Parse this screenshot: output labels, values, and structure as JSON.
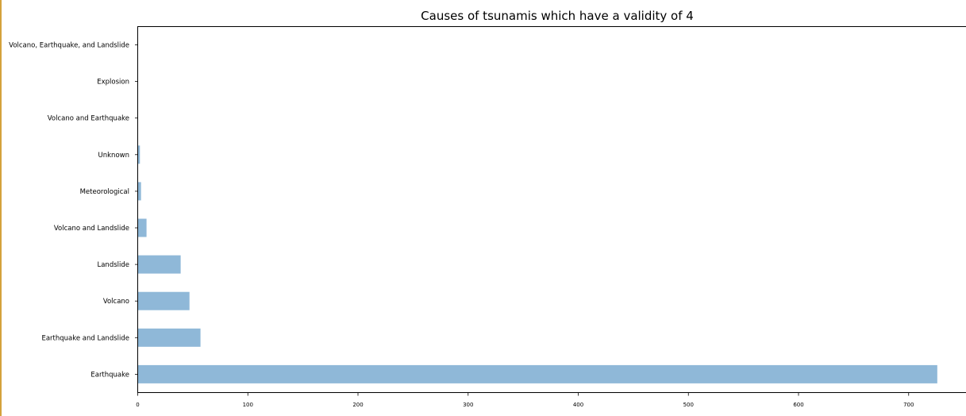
{
  "chart_data": {
    "type": "bar",
    "orientation": "horizontal",
    "title": "Causes of tsunamis which have a validity of 4",
    "xlabel": "",
    "ylabel": "",
    "categories": [
      "Earthquake",
      "Earthquake and Landslide",
      "Volcano",
      "Landslide",
      "Volcano and Landslide",
      "Meteorological",
      "Unknown",
      "Volcano and Earthquake",
      "Explosion",
      "Volcano, Earthquake, and Landslide"
    ],
    "values": [
      726,
      57,
      47,
      39,
      8,
      3,
      2,
      0,
      0,
      0
    ],
    "xlim": [
      0,
      750
    ],
    "xticks": [
      0,
      100,
      200,
      300,
      400,
      500,
      600,
      700
    ],
    "bar_color": "#8fb8d8",
    "grid": false,
    "legend": "none"
  }
}
